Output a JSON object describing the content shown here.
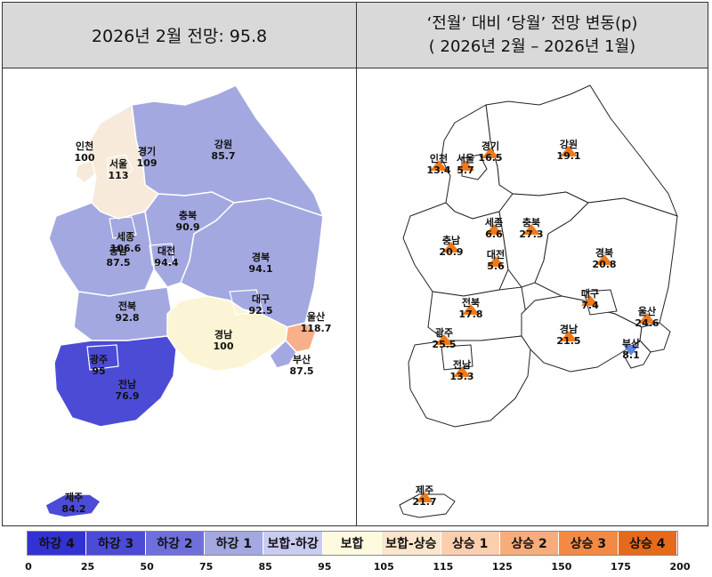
{
  "left_title": "2026년 2월 전망: 95.8",
  "right_title_line1": "‘전월’ 대비 ‘당월’ 전망 변동(p)",
  "right_title_line2": "( 2026년 2월 –   2026년 1월)",
  "regions_left": [
    {
      "name": "인천",
      "value": "100"
    },
    {
      "name": "서울",
      "value": "113"
    },
    {
      "name": "경기",
      "value": "109"
    },
    {
      "name": "강원",
      "value": "85.7"
    },
    {
      "name": "세종",
      "value": "106.6"
    },
    {
      "name": "충북",
      "value": "90.9"
    },
    {
      "name": "대전",
      "value": "94.4"
    },
    {
      "name": "충남",
      "value": "87.5"
    },
    {
      "name": "경북",
      "value": "94.1"
    },
    {
      "name": "대구",
      "value": "92.5"
    },
    {
      "name": "전북",
      "value": "92.8"
    },
    {
      "name": "울산",
      "value": "118.7"
    },
    {
      "name": "경남",
      "value": "100"
    },
    {
      "name": "광주",
      "value": "95"
    },
    {
      "name": "부산",
      "value": "87.5"
    },
    {
      "name": "전남",
      "value": "76.9"
    },
    {
      "name": "제주",
      "value": "84.2"
    }
  ],
  "regions_right": [
    {
      "name": "인천",
      "value": "13.4"
    },
    {
      "name": "서울",
      "value": "5.7"
    },
    {
      "name": "경기",
      "value": "16.5"
    },
    {
      "name": "강원",
      "value": "19.1"
    },
    {
      "name": "세종",
      "value": "6.6"
    },
    {
      "name": "충북",
      "value": "27.3"
    },
    {
      "name": "충남",
      "value": "20.9"
    },
    {
      "name": "대전",
      "value": "5.6"
    },
    {
      "name": "경북",
      "value": "20.8"
    },
    {
      "name": "전북",
      "value": "17.8"
    },
    {
      "name": "대구",
      "value": "7.4"
    },
    {
      "name": "울산",
      "value": "24.6"
    },
    {
      "name": "광주",
      "value": "25.5"
    },
    {
      "name": "경남",
      "value": "21.5"
    },
    {
      "name": "부산",
      "value": "8.1"
    },
    {
      "name": "전남",
      "value": "13.3"
    },
    {
      "name": "제주",
      "value": "21.7"
    }
  ],
  "legend": [
    {
      "label": "하강 4",
      "color": "#3232d2"
    },
    {
      "label": "하강 3",
      "color": "#4b4bd6"
    },
    {
      "label": "하강 2",
      "color": "#6f6fdc"
    },
    {
      "label": "하강 1",
      "color": "#a3a8e0"
    },
    {
      "label": "보합-하강",
      "color": "#c9cbf0"
    },
    {
      "label": "보합",
      "color": "#fdfae0"
    },
    {
      "label": "보합-상승",
      "color": "#fbe6cc"
    },
    {
      "label": "상승 1",
      "color": "#fbcfae"
    },
    {
      "label": "상승 2",
      "color": "#f7ac7c"
    },
    {
      "label": "상승 3",
      "color": "#f28a46"
    },
    {
      "label": "상승 4",
      "color": "#e56a1c"
    }
  ],
  "ticks": [
    "0",
    "25",
    "50",
    "75",
    "85",
    "95",
    "105",
    "115",
    "125",
    "150",
    "175",
    "200"
  ],
  "colors": {
    "seoul_gyeonggi": "#f7eadb",
    "ulsan": "#f7b08a",
    "gyeongnam": "#fbf5d6",
    "jeonnam_gwangju": "#4b4bd6",
    "default_region": "#a3a8e0",
    "triangle_up": "#f07a18",
    "triangle_down": "#5f86e0"
  }
}
